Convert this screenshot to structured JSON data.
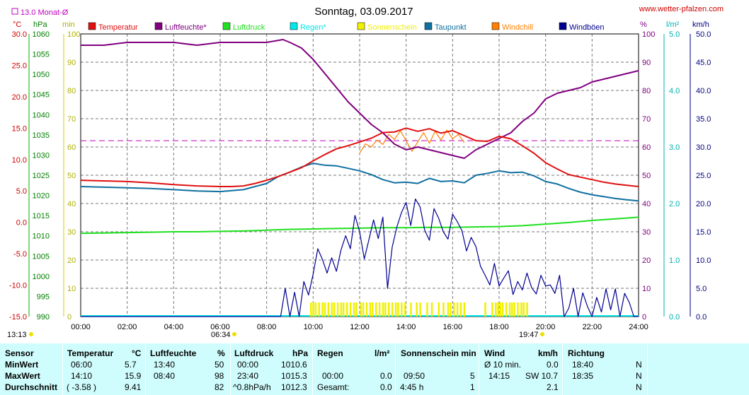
{
  "header": {
    "title": "Sonntag, 03.09.2017",
    "site": "www.wetter-pfalzen.com",
    "monthly_avg": "13.0 Monat-Ø"
  },
  "axis_units": {
    "temp": "°C",
    "hpa": "hPa",
    "min": "min",
    "pct": "%",
    "rain": "l/m²",
    "wind": "km/h"
  },
  "sun": {
    "rise": "06:34",
    "set": "19:47",
    "left_label": "13:13"
  },
  "legend": [
    {
      "label": "Temperatur",
      "color": "#e01010"
    },
    {
      "label": "Luftfeuchte*",
      "color": "#800080"
    },
    {
      "label": "Luftdruck",
      "color": "#20e020"
    },
    {
      "label": "Regen*",
      "color": "#00e8e8"
    },
    {
      "label": "Sonnenschein",
      "color": "#f0f000"
    },
    {
      "label": "Taupunkt",
      "color": "#1070a0"
    },
    {
      "label": "Windchill",
      "color": "#ff8000"
    },
    {
      "label": "Windböen",
      "color": "#000090"
    }
  ],
  "chart_data": {
    "type": "line",
    "x_ticks": [
      "00:00",
      "02:00",
      "04:00",
      "06:00",
      "08:00",
      "10:00",
      "12:00",
      "14:00",
      "16:00",
      "18:00",
      "20:00",
      "22:00",
      "24:00"
    ],
    "axes": {
      "temp_c": {
        "range": [
          -15,
          30
        ],
        "ticks": [
          "30.0",
          "25.0",
          "20.0",
          "15.0",
          "10.0",
          "5.0",
          "0.0",
          "-5.0",
          "-10.0",
          "-15.0"
        ]
      },
      "pressure_hpa": {
        "range": [
          990,
          1060
        ],
        "ticks": [
          "1060",
          "1055",
          "1050",
          "1045",
          "1040",
          "1035",
          "1030",
          "1025",
          "1020",
          "1015",
          "1010",
          "1005",
          "1000",
          "995",
          "990"
        ]
      },
      "sun_min": {
        "range": [
          0,
          100
        ],
        "ticks": [
          "100",
          "90",
          "80",
          "70",
          "60",
          "50",
          "40",
          "30",
          "20",
          "10",
          "0"
        ]
      },
      "humidity_pct": {
        "range": [
          0,
          100
        ],
        "ticks": [
          "100",
          "90",
          "80",
          "70",
          "60",
          "50",
          "40",
          "30",
          "20",
          "10",
          "0"
        ]
      },
      "rain_lm2": {
        "range": [
          0,
          5
        ],
        "ticks": [
          "5.0",
          "4.0",
          "3.0",
          "2.0",
          "1.0",
          "0.0"
        ]
      },
      "wind_kmh": {
        "range": [
          0,
          50
        ],
        "ticks": [
          "50.0",
          "45.0",
          "40.0",
          "35.0",
          "30.0",
          "25.0",
          "20.0",
          "15.0",
          "10.0",
          "5.0",
          "0.0"
        ]
      }
    },
    "monthly_avg_temp": 13.0,
    "series": [
      {
        "name": "Temperatur",
        "axis": "temp_c",
        "x": [
          0,
          1,
          2,
          3,
          4,
          5,
          6,
          6.5,
          7,
          7.5,
          8,
          8.5,
          9,
          9.5,
          10,
          10.5,
          11,
          11.5,
          12,
          12.5,
          13,
          13.5,
          14,
          14.5,
          15,
          15.5,
          16,
          16.5,
          17,
          17.5,
          18,
          18.5,
          19,
          19.5,
          20,
          20.5,
          21,
          21.5,
          22,
          22.5,
          23,
          23.5,
          24
        ],
        "y": [
          6.7,
          6.6,
          6.5,
          6.3,
          6.0,
          5.8,
          5.7,
          5.7,
          5.8,
          6.2,
          6.7,
          7.3,
          8.0,
          8.7,
          9.8,
          10.8,
          11.7,
          12.2,
          12.8,
          13.4,
          14.3,
          14.4,
          15.0,
          14.5,
          14.9,
          14.2,
          14.6,
          13.8,
          13.0,
          12.9,
          13.7,
          13.3,
          12.2,
          11.0,
          9.5,
          8.5,
          7.6,
          7.2,
          6.8,
          6.4,
          6.1,
          5.9,
          5.7
        ]
      },
      {
        "name": "Luftfeuchte*",
        "axis": "humidity_pct",
        "x": [
          0,
          1,
          2,
          3,
          4,
          5,
          6,
          7,
          8,
          8.7,
          9,
          9.5,
          10,
          10.5,
          11,
          11.5,
          12,
          12.5,
          13,
          13.5,
          14,
          14.5,
          15,
          15.5,
          16,
          16.5,
          17,
          17.5,
          18,
          18.5,
          19,
          19.5,
          20,
          20.5,
          21,
          21.5,
          22,
          22.5,
          23,
          23.5,
          24
        ],
        "y": [
          96,
          96,
          97,
          97,
          97,
          96,
          97,
          97,
          97,
          98,
          97,
          95,
          91,
          86,
          81,
          76,
          72,
          68,
          65,
          61,
          59,
          60,
          59,
          58,
          57,
          56,
          59,
          61,
          63,
          65,
          69,
          72,
          77,
          79,
          80,
          81,
          83,
          84,
          85,
          86,
          87
        ]
      },
      {
        "name": "Luftdruck",
        "axis": "pressure_hpa",
        "x": [
          0,
          1,
          2,
          3,
          4,
          5,
          6,
          7,
          8,
          9,
          10,
          11,
          12,
          13,
          14,
          15,
          16,
          17,
          18,
          19,
          20,
          21,
          22,
          23,
          24
        ],
        "y": [
          1010.6,
          1010.7,
          1010.8,
          1010.9,
          1011.0,
          1011.0,
          1011.1,
          1011.2,
          1011.4,
          1011.6,
          1011.7,
          1011.8,
          1011.9,
          1012.0,
          1012.0,
          1012.1,
          1012.1,
          1012.2,
          1012.3,
          1012.5,
          1012.9,
          1013.3,
          1013.8,
          1014.2,
          1014.6
        ]
      },
      {
        "name": "Taupunkt",
        "axis": "temp_c",
        "x": [
          0,
          1,
          2,
          3,
          4,
          5,
          6,
          7,
          8,
          8.5,
          9,
          9.5,
          10,
          10.5,
          11,
          11.5,
          12,
          12.5,
          13,
          13.5,
          14,
          14.5,
          15,
          15.5,
          16,
          16.5,
          17,
          17.5,
          18,
          18.5,
          19,
          19.5,
          20,
          20.5,
          21,
          21.5,
          22,
          22.5,
          23,
          23.5,
          24
        ],
        "y": [
          5.7,
          5.6,
          5.5,
          5.4,
          5.2,
          5.0,
          4.9,
          5.2,
          6.2,
          7.3,
          8.0,
          8.8,
          9.4,
          9.1,
          9.0,
          8.6,
          8.2,
          7.6,
          6.8,
          6.3,
          6.4,
          6.2,
          7.0,
          6.5,
          6.6,
          6.3,
          7.5,
          7.8,
          8.2,
          7.9,
          8.0,
          7.4,
          6.5,
          6.1,
          5.4,
          4.8,
          4.4,
          4.1,
          3.8,
          3.6,
          3.4
        ]
      },
      {
        "name": "Windchill",
        "axis": "temp_c",
        "x": [
          12,
          12.25,
          12.5,
          12.75,
          13,
          13.25,
          13.5,
          13.75,
          14,
          14.25,
          14.5,
          14.75,
          15,
          15.25,
          15.5,
          15.75,
          16,
          16.25,
          16.5
        ],
        "y": [
          11.0,
          12.5,
          12.0,
          13.1,
          12.4,
          14.0,
          13.2,
          14.6,
          13.0,
          11.3,
          12.8,
          14.3,
          12.6,
          14.5,
          13.1,
          14.7,
          13.3,
          14.0,
          12.7
        ]
      },
      {
        "name": "Windböen",
        "axis": "wind_kmh",
        "x": [
          0,
          8.6,
          8.8,
          9.0,
          9.2,
          9.4,
          9.6,
          9.8,
          10.0,
          10.2,
          10.4,
          10.6,
          10.8,
          11.0,
          11.2,
          11.4,
          11.6,
          11.8,
          12.0,
          12.2,
          12.4,
          12.6,
          12.8,
          13.0,
          13.2,
          13.4,
          13.6,
          13.8,
          14.0,
          14.2,
          14.4,
          14.6,
          14.8,
          15.0,
          15.2,
          15.4,
          15.6,
          15.8,
          16.0,
          16.2,
          16.4,
          16.6,
          16.8,
          17.0,
          17.2,
          17.4,
          17.6,
          17.8,
          18.0,
          18.2,
          18.4,
          18.6,
          18.8,
          19.0,
          19.2,
          19.4,
          19.6,
          19.8,
          20.0,
          20.2,
          20.4,
          20.6,
          20.8,
          21.0,
          21.2,
          21.4,
          21.6,
          21.8,
          22.0,
          22.2,
          22.4,
          22.6,
          22.8,
          23.0,
          23.2,
          23.4,
          23.6,
          23.8,
          24
        ],
        "y": [
          0,
          0,
          5.0,
          0,
          4.3,
          0,
          6.2,
          3.8,
          7.5,
          12.0,
          10.1,
          7.7,
          10.4,
          8.0,
          11.8,
          14.3,
          12.0,
          17.9,
          15.0,
          10.2,
          13.6,
          17.1,
          13.8,
          17.6,
          5.0,
          12.3,
          15.8,
          18.4,
          20.2,
          16.1,
          20.8,
          19.4,
          15.3,
          13.5,
          19.1,
          17.4,
          15.0,
          13.7,
          18.1,
          16.8,
          15.2,
          11.6,
          14.0,
          12.4,
          8.9,
          7.3,
          5.6,
          9.4,
          5.4,
          6.8,
          8.1,
          3.9,
          6.2,
          4.7,
          7.7,
          5.1,
          4.0,
          7.3,
          5.4,
          5.6,
          4.1,
          7.3,
          0,
          1.5,
          5.0,
          0,
          4.2,
          1.8,
          0,
          3.4,
          0.8,
          4.9,
          1.2,
          4.9,
          0,
          4.1,
          2.5,
          0,
          0
        ]
      },
      {
        "name": "Sonnenschein",
        "axis": "sun_min",
        "bars_x": [
          9.9,
          10.0,
          10.1,
          10.25,
          10.4,
          10.5,
          10.65,
          10.8,
          10.9,
          11.05,
          11.2,
          11.3,
          11.45,
          11.6,
          11.75,
          11.85,
          12.05,
          12.15,
          12.3,
          12.45,
          12.55,
          12.7,
          12.85,
          13.0,
          13.1,
          13.25,
          13.4,
          13.55,
          13.65,
          13.8,
          13.95,
          14.2,
          14.45,
          14.6,
          14.9,
          15.1,
          15.4,
          15.6,
          15.8,
          15.9,
          16.05,
          16.2,
          16.35,
          16.5,
          17.4,
          17.7,
          17.85,
          17.95,
          18.05,
          18.15,
          18.3,
          18.45,
          18.55,
          18.65,
          18.8,
          18.95,
          19.05,
          19.2
        ],
        "bar_value": 5
      }
    ]
  },
  "table": {
    "sensor": {
      "header": "Sensor",
      "rows": [
        "MinWert",
        "MaxWert",
        "Durchschnitt"
      ]
    },
    "temperatur": {
      "header": "Temperatur",
      "unit": "°C",
      "rows": [
        [
          "06:00",
          "5.7"
        ],
        [
          "14:10",
          "15.9"
        ],
        [
          "( -3.58 )",
          "9.41"
        ]
      ]
    },
    "luftfeuchte": {
      "header": "Luftfeuchte",
      "unit": "%",
      "rows": [
        [
          "13:40",
          "50"
        ],
        [
          "08:40",
          "98"
        ],
        [
          "",
          "82"
        ]
      ]
    },
    "luftdruck": {
      "header": "Luftdruck",
      "unit": "hPa",
      "rows": [
        [
          "00:00",
          "1010.6"
        ],
        [
          "23:40",
          "1015.3"
        ],
        [
          "^0.8hPa/h",
          "1012.3"
        ]
      ]
    },
    "regen": {
      "header": "Regen",
      "unit": "l/m²",
      "rows": [
        [
          "",
          ""
        ],
        [
          "00:00",
          "0.0"
        ],
        [
          "Gesamt:",
          "0.0"
        ]
      ]
    },
    "sonne": {
      "header": "Sonnenschein min",
      "unit": "",
      "rows": [
        [
          "",
          ""
        ],
        [
          "09:50",
          "5"
        ],
        [
          "4:45 h",
          "1"
        ]
      ]
    },
    "wind": {
      "header": "Wind",
      "unit": "km/h",
      "rows": [
        [
          "Ø 10 min.",
          "0.0"
        ],
        [
          "14:15",
          "SW 10.7"
        ],
        [
          "",
          "2.1"
        ]
      ]
    },
    "richtung": {
      "header": "Richtung",
      "unit": "",
      "rows": [
        [
          "18:40",
          "N"
        ],
        [
          "18:35",
          "N"
        ],
        [
          "",
          "N"
        ]
      ]
    }
  }
}
